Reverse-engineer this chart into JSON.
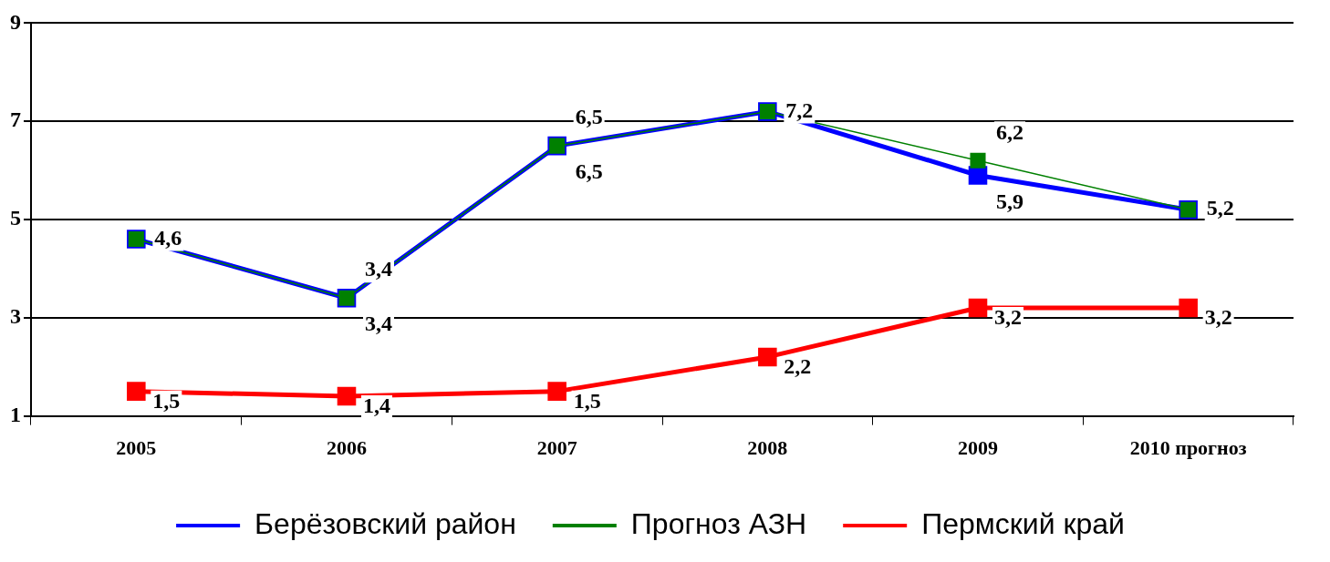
{
  "chart_data": {
    "type": "line",
    "categories": [
      "2005",
      "2006",
      "2007",
      "2008",
      "2009",
      "2010 прогноз"
    ],
    "series": [
      {
        "name": "Берёзовский район",
        "color": "#0000ff",
        "values": [
          4.6,
          3.4,
          6.5,
          7.2,
          5.9,
          5.2
        ],
        "value_labels": [
          "4,6",
          "3,4",
          "6,5",
          "7,2",
          "5,9",
          "5,2"
        ]
      },
      {
        "name": "Прогноз АЗН",
        "color": "#008000",
        "values": [
          4.6,
          3.4,
          6.5,
          7.2,
          6.2,
          5.2
        ],
        "value_labels": [
          null,
          "3,4",
          "6,5",
          null,
          "6,2",
          null
        ]
      },
      {
        "name": "Пермский край",
        "color": "#ff0000",
        "values": [
          1.5,
          1.4,
          1.5,
          2.2,
          3.2,
          3.2
        ],
        "value_labels": [
          "1,5",
          "1,4",
          "1,5",
          "2,2",
          "3,2",
          "3,2"
        ]
      }
    ],
    "ylim": [
      1,
      9
    ],
    "yticks": [
      1,
      3,
      5,
      7,
      9
    ],
    "grid": "y",
    "legend": "bottom",
    "marker": "square",
    "line_style": "solid"
  }
}
